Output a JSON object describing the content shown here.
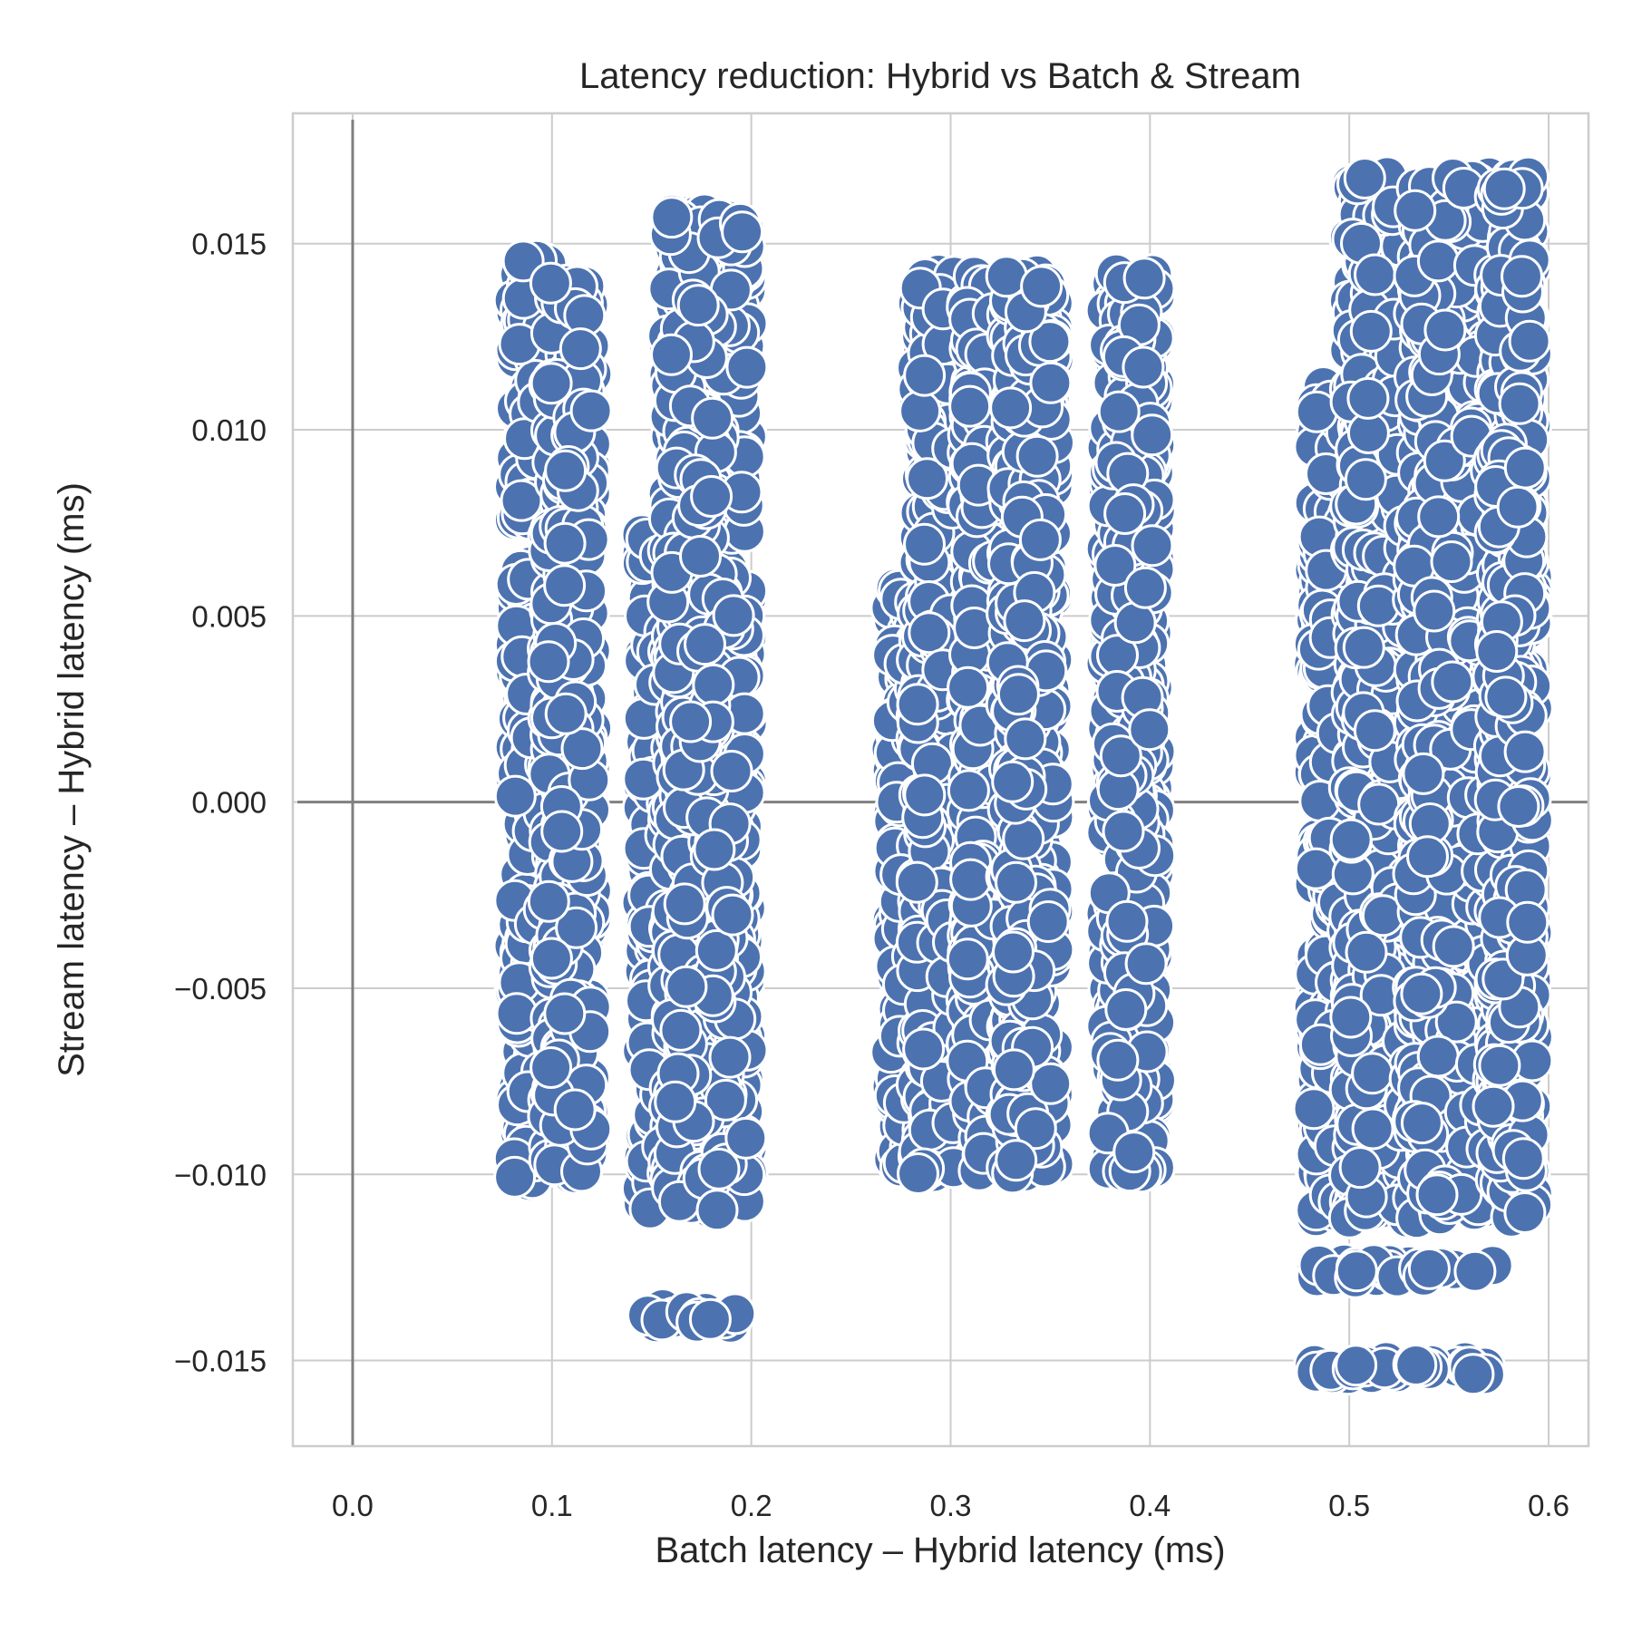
{
  "chart_data": {
    "type": "scatter",
    "title": "Latency reduction: Hybrid vs Batch & Stream",
    "xlabel": "Batch latency – Hybrid latency (ms)",
    "ylabel": "Stream latency – Hybrid latency (ms)",
    "xlim": [
      -0.03,
      0.62
    ],
    "ylim": [
      -0.0173,
      0.0185
    ],
    "xticks": [
      0.0,
      0.1,
      0.2,
      0.3,
      0.4,
      0.5,
      0.6
    ],
    "xtick_labels": [
      "0.0",
      "0.1",
      "0.2",
      "0.3",
      "0.4",
      "0.5",
      "0.6"
    ],
    "yticks": [
      -0.015,
      -0.01,
      -0.005,
      0.0,
      0.005,
      0.01,
      0.015
    ],
    "ytick_labels": [
      "−0.015",
      "−0.010",
      "−0.005",
      "0.000",
      "0.005",
      "0.010",
      "0.015"
    ],
    "grid": true,
    "reference_lines": {
      "x": 0,
      "y": 0
    },
    "marker_color": "#4c72b0",
    "marker_edge_color": "#ffffff",
    "grid_color": "#cccccc",
    "reference_line_color": "#808080",
    "clusters": [
      {
        "x_range": [
          0.081,
          0.098
        ],
        "y_ranges": [
          [
            -0.0102,
            0.0064
          ],
          [
            0.0075,
            0.0146
          ]
        ]
      },
      {
        "x_range": [
          0.098,
          0.12
        ],
        "y_ranges": [
          [
            -0.0101,
            0.014
          ]
        ]
      },
      {
        "x_range": [
          0.145,
          0.165
        ],
        "y_ranges": [
          [
            -0.011,
            0.0072
          ],
          [
            -0.014,
            -0.0136
          ]
        ]
      },
      {
        "x_range": [
          0.158,
          0.198
        ],
        "y_ranges": [
          [
            -0.011,
            0.0158
          ],
          [
            -0.014,
            -0.0136
          ]
        ]
      },
      {
        "x_range": [
          0.27,
          0.29
        ],
        "y_ranges": [
          [
            -0.01,
            0.006
          ]
        ]
      },
      {
        "x_range": [
          0.283,
          0.302
        ],
        "y_ranges": [
          [
            -0.01,
            0.0142
          ]
        ]
      },
      {
        "x_range": [
          0.308,
          0.322
        ],
        "y_ranges": [
          [
            -0.01,
            0.0142
          ]
        ]
      },
      {
        "x_range": [
          0.328,
          0.352
        ],
        "y_ranges": [
          [
            -0.01,
            0.0142
          ]
        ]
      },
      {
        "x_range": [
          0.378,
          0.403
        ],
        "y_ranges": [
          [
            -0.01,
            0.0142
          ]
        ]
      },
      {
        "x_range": [
          0.482,
          0.5
        ],
        "y_ranges": [
          [
            -0.0154,
            -0.015
          ],
          [
            -0.0128,
            -0.0124
          ],
          [
            -0.0112,
            0.0112
          ]
        ]
      },
      {
        "x_range": [
          0.5,
          0.532
        ],
        "y_ranges": [
          [
            -0.0154,
            -0.015
          ],
          [
            -0.0128,
            -0.0124
          ],
          [
            -0.0112,
            0.0168
          ]
        ]
      },
      {
        "x_range": [
          0.532,
          0.572
        ],
        "y_ranges": [
          [
            -0.0154,
            -0.015
          ],
          [
            -0.0128,
            -0.0124
          ],
          [
            -0.0112,
            0.0168
          ]
        ]
      },
      {
        "x_range": [
          0.572,
          0.592
        ],
        "y_ranges": [
          [
            -0.0112,
            0.0168
          ]
        ]
      }
    ]
  }
}
